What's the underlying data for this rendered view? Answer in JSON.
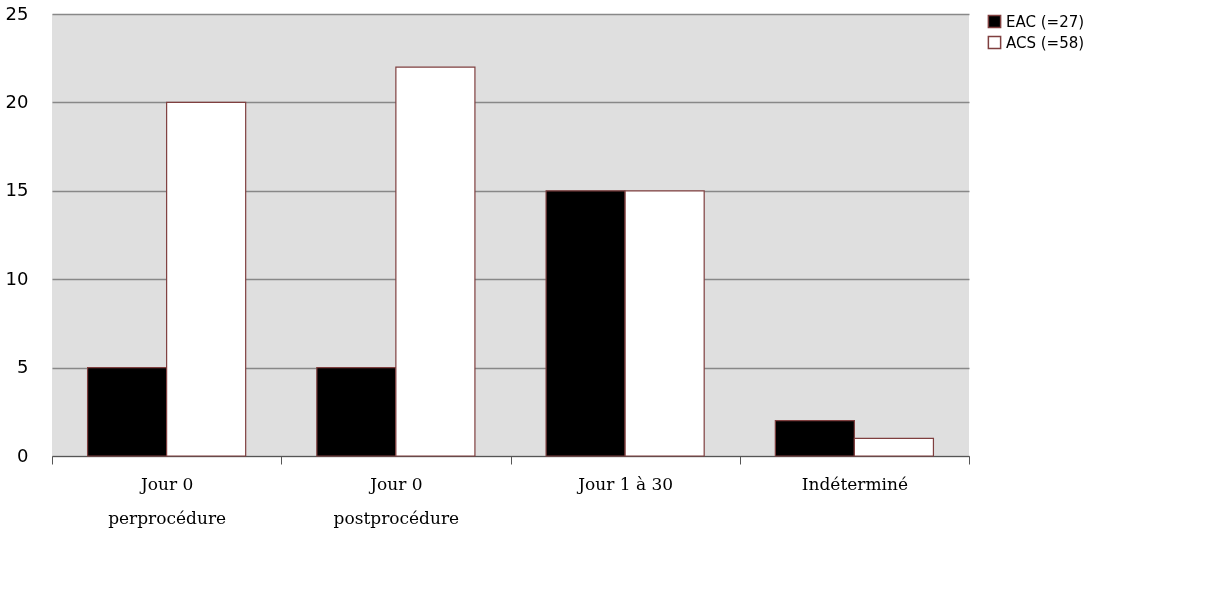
{
  "chart_data": {
    "type": "bar",
    "categories": [
      "Jour  0\nperprocédure",
      "Jour  0\npostprocédure",
      "Jour  1 à 30",
      "Indéterminé"
    ],
    "series": [
      {
        "name": "EAC  (=27)",
        "color": "#000000",
        "values": [
          5,
          5,
          15,
          2
        ]
      },
      {
        "name": "ACS  (=58)",
        "color": "#ffffff",
        "values": [
          20,
          22,
          15,
          1
        ]
      }
    ],
    "ylim": [
      0,
      25
    ],
    "yticks": [
      0,
      5,
      10,
      15,
      20,
      25
    ],
    "grid": "y",
    "legend": "right"
  }
}
